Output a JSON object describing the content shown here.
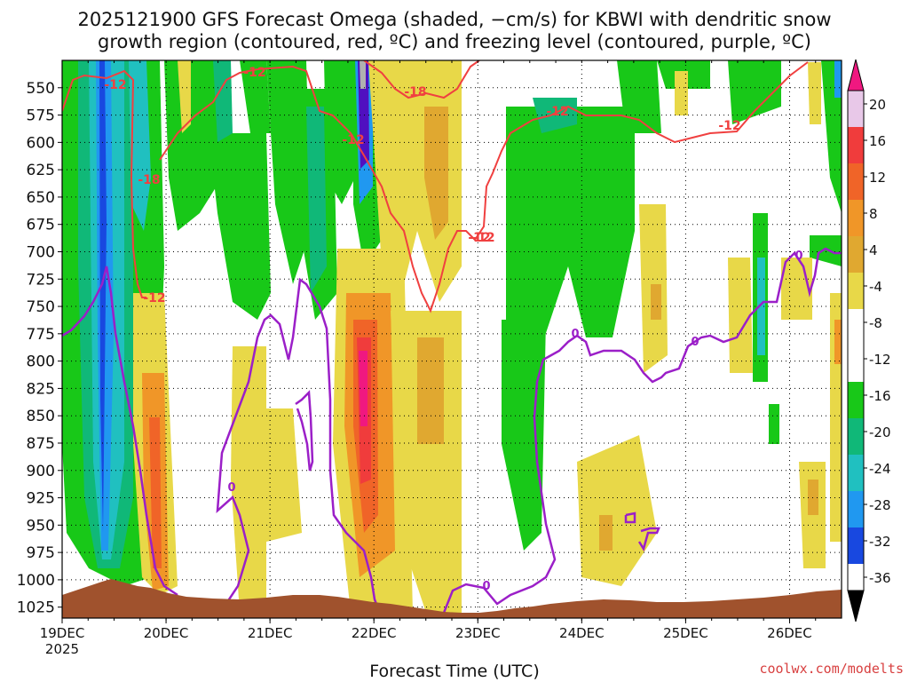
{
  "title_line1": "2025121900 GFS Forecast Omega (shaded, −cm/s) for KBWI with dendritic snow",
  "title_line2": "growth region (contoured, red, ºC) and freezing level (contoured, purple, ºC)",
  "xlabel": "Forecast Time (UTC)",
  "credit": "coolwx.com/modelts",
  "colors": {
    "terrain": "#a0522d",
    "dgz_contour": "#f04040",
    "freezing_contour": "#9b1fc8"
  },
  "chart_data": {
    "type": "heatmap",
    "x_ticks": [
      "19DEC",
      "20DEC",
      "21DEC",
      "22DEC",
      "23DEC",
      "24DEC",
      "25DEC",
      "26DEC"
    ],
    "x_year": "2025",
    "y_ticks": [
      550,
      575,
      600,
      625,
      650,
      675,
      700,
      725,
      750,
      775,
      800,
      825,
      850,
      875,
      900,
      925,
      950,
      975,
      1000,
      1025
    ],
    "ylim": [
      525,
      1035
    ],
    "grid": true,
    "colorbar_ticks": [
      20,
      16,
      12,
      8,
      4,
      -4,
      -8,
      -12,
      -16,
      -20,
      -24,
      -28,
      -32,
      -36
    ],
    "colorbar_colors": [
      "#e8c8e8",
      "#f03c3c",
      "#f06428",
      "#f09628",
      "#e0a830",
      "#e8d848",
      "#ffffff",
      "#ffffff",
      "#18c818",
      "#10b878",
      "#20c0c0",
      "#2098f0",
      "#1848e0",
      "#5010c0",
      "#9808c8",
      "#b0b0b0",
      "#000000"
    ],
    "contour_labels_red": [
      "-12",
      "-12",
      "-18",
      "-12",
      "-12",
      "-18",
      "-12",
      "-12",
      "-12",
      "-12"
    ],
    "contour_labels_purple": [
      "0",
      "0",
      "0",
      "0",
      "0"
    ]
  }
}
